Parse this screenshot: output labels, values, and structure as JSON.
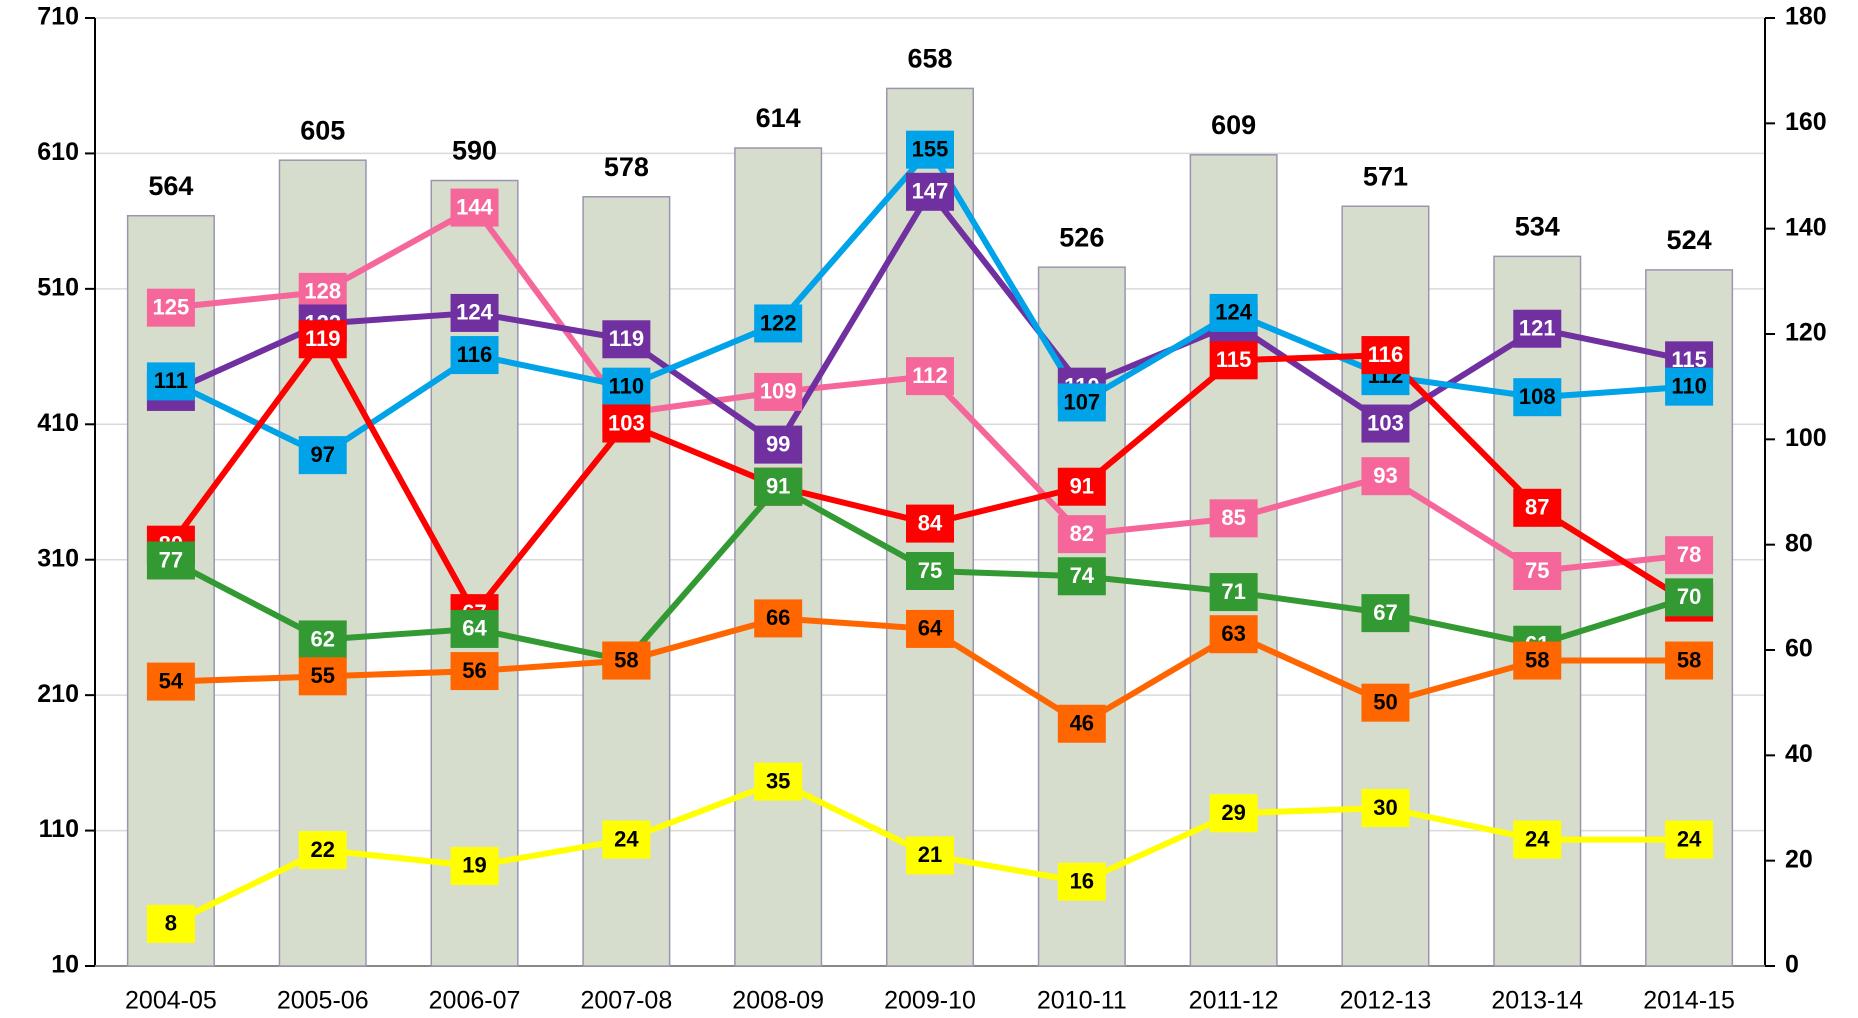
{
  "chart_data": {
    "type": "combo",
    "categories": [
      "2004-05",
      "2005-06",
      "2006-07",
      "2007-08",
      "2008-09",
      "2009-10",
      "2010-11",
      "2011-12",
      "2012-13",
      "2013-14",
      "2014-15"
    ],
    "ylim": [
      10,
      710
    ],
    "yticks": [
      10,
      110,
      210,
      310,
      410,
      510,
      610,
      710
    ],
    "y2lim": [
      0,
      180
    ],
    "y2ticks": [
      0,
      20,
      40,
      60,
      80,
      100,
      120,
      140,
      160,
      180
    ],
    "grid": true,
    "series": [
      {
        "type": "bar",
        "color": "#d7ddcc",
        "values": [
          564,
          605,
          590,
          578,
          614,
          658,
          526,
          609,
          571,
          534,
          524
        ]
      },
      {
        "type": "line",
        "axis": "y2",
        "color": "#f5679a",
        "label_color": "#ffffff",
        "values": [
          125,
          128,
          144,
          105,
          109,
          112,
          82,
          85,
          93,
          75,
          78
        ]
      },
      {
        "type": "line",
        "axis": "y2",
        "color": "#7030a0",
        "label_color": "#ffffff",
        "values": [
          109,
          122,
          124,
          119,
          99,
          147,
          110,
          122,
          103,
          121,
          115
        ]
      },
      {
        "type": "line",
        "axis": "y2",
        "color": "#00a2e8",
        "label_color": "#000000",
        "values": [
          111,
          97,
          116,
          110,
          122,
          155,
          107,
          124,
          112,
          108,
          110
        ]
      },
      {
        "type": "line",
        "axis": "y2",
        "color": "#ff0000",
        "label_color": "#ffffff",
        "values": [
          80,
          119,
          67,
          103,
          91,
          84,
          91,
          115,
          116,
          87,
          69
        ]
      },
      {
        "type": "line",
        "axis": "y2",
        "color": "#339933",
        "label_color": "#ffffff",
        "values": [
          77,
          62,
          64,
          58,
          91,
          75,
          74,
          71,
          67,
          61,
          70
        ]
      },
      {
        "type": "line",
        "axis": "y2",
        "color": "#ff6600",
        "label_color": "#000000",
        "values": [
          54,
          55,
          56,
          58,
          66,
          64,
          46,
          63,
          50,
          58,
          58
        ]
      },
      {
        "type": "line",
        "axis": "y2",
        "color": "#ffff00",
        "label_color": "#000000",
        "values": [
          8,
          22,
          19,
          24,
          35,
          21,
          16,
          29,
          30,
          24,
          24
        ]
      }
    ]
  }
}
